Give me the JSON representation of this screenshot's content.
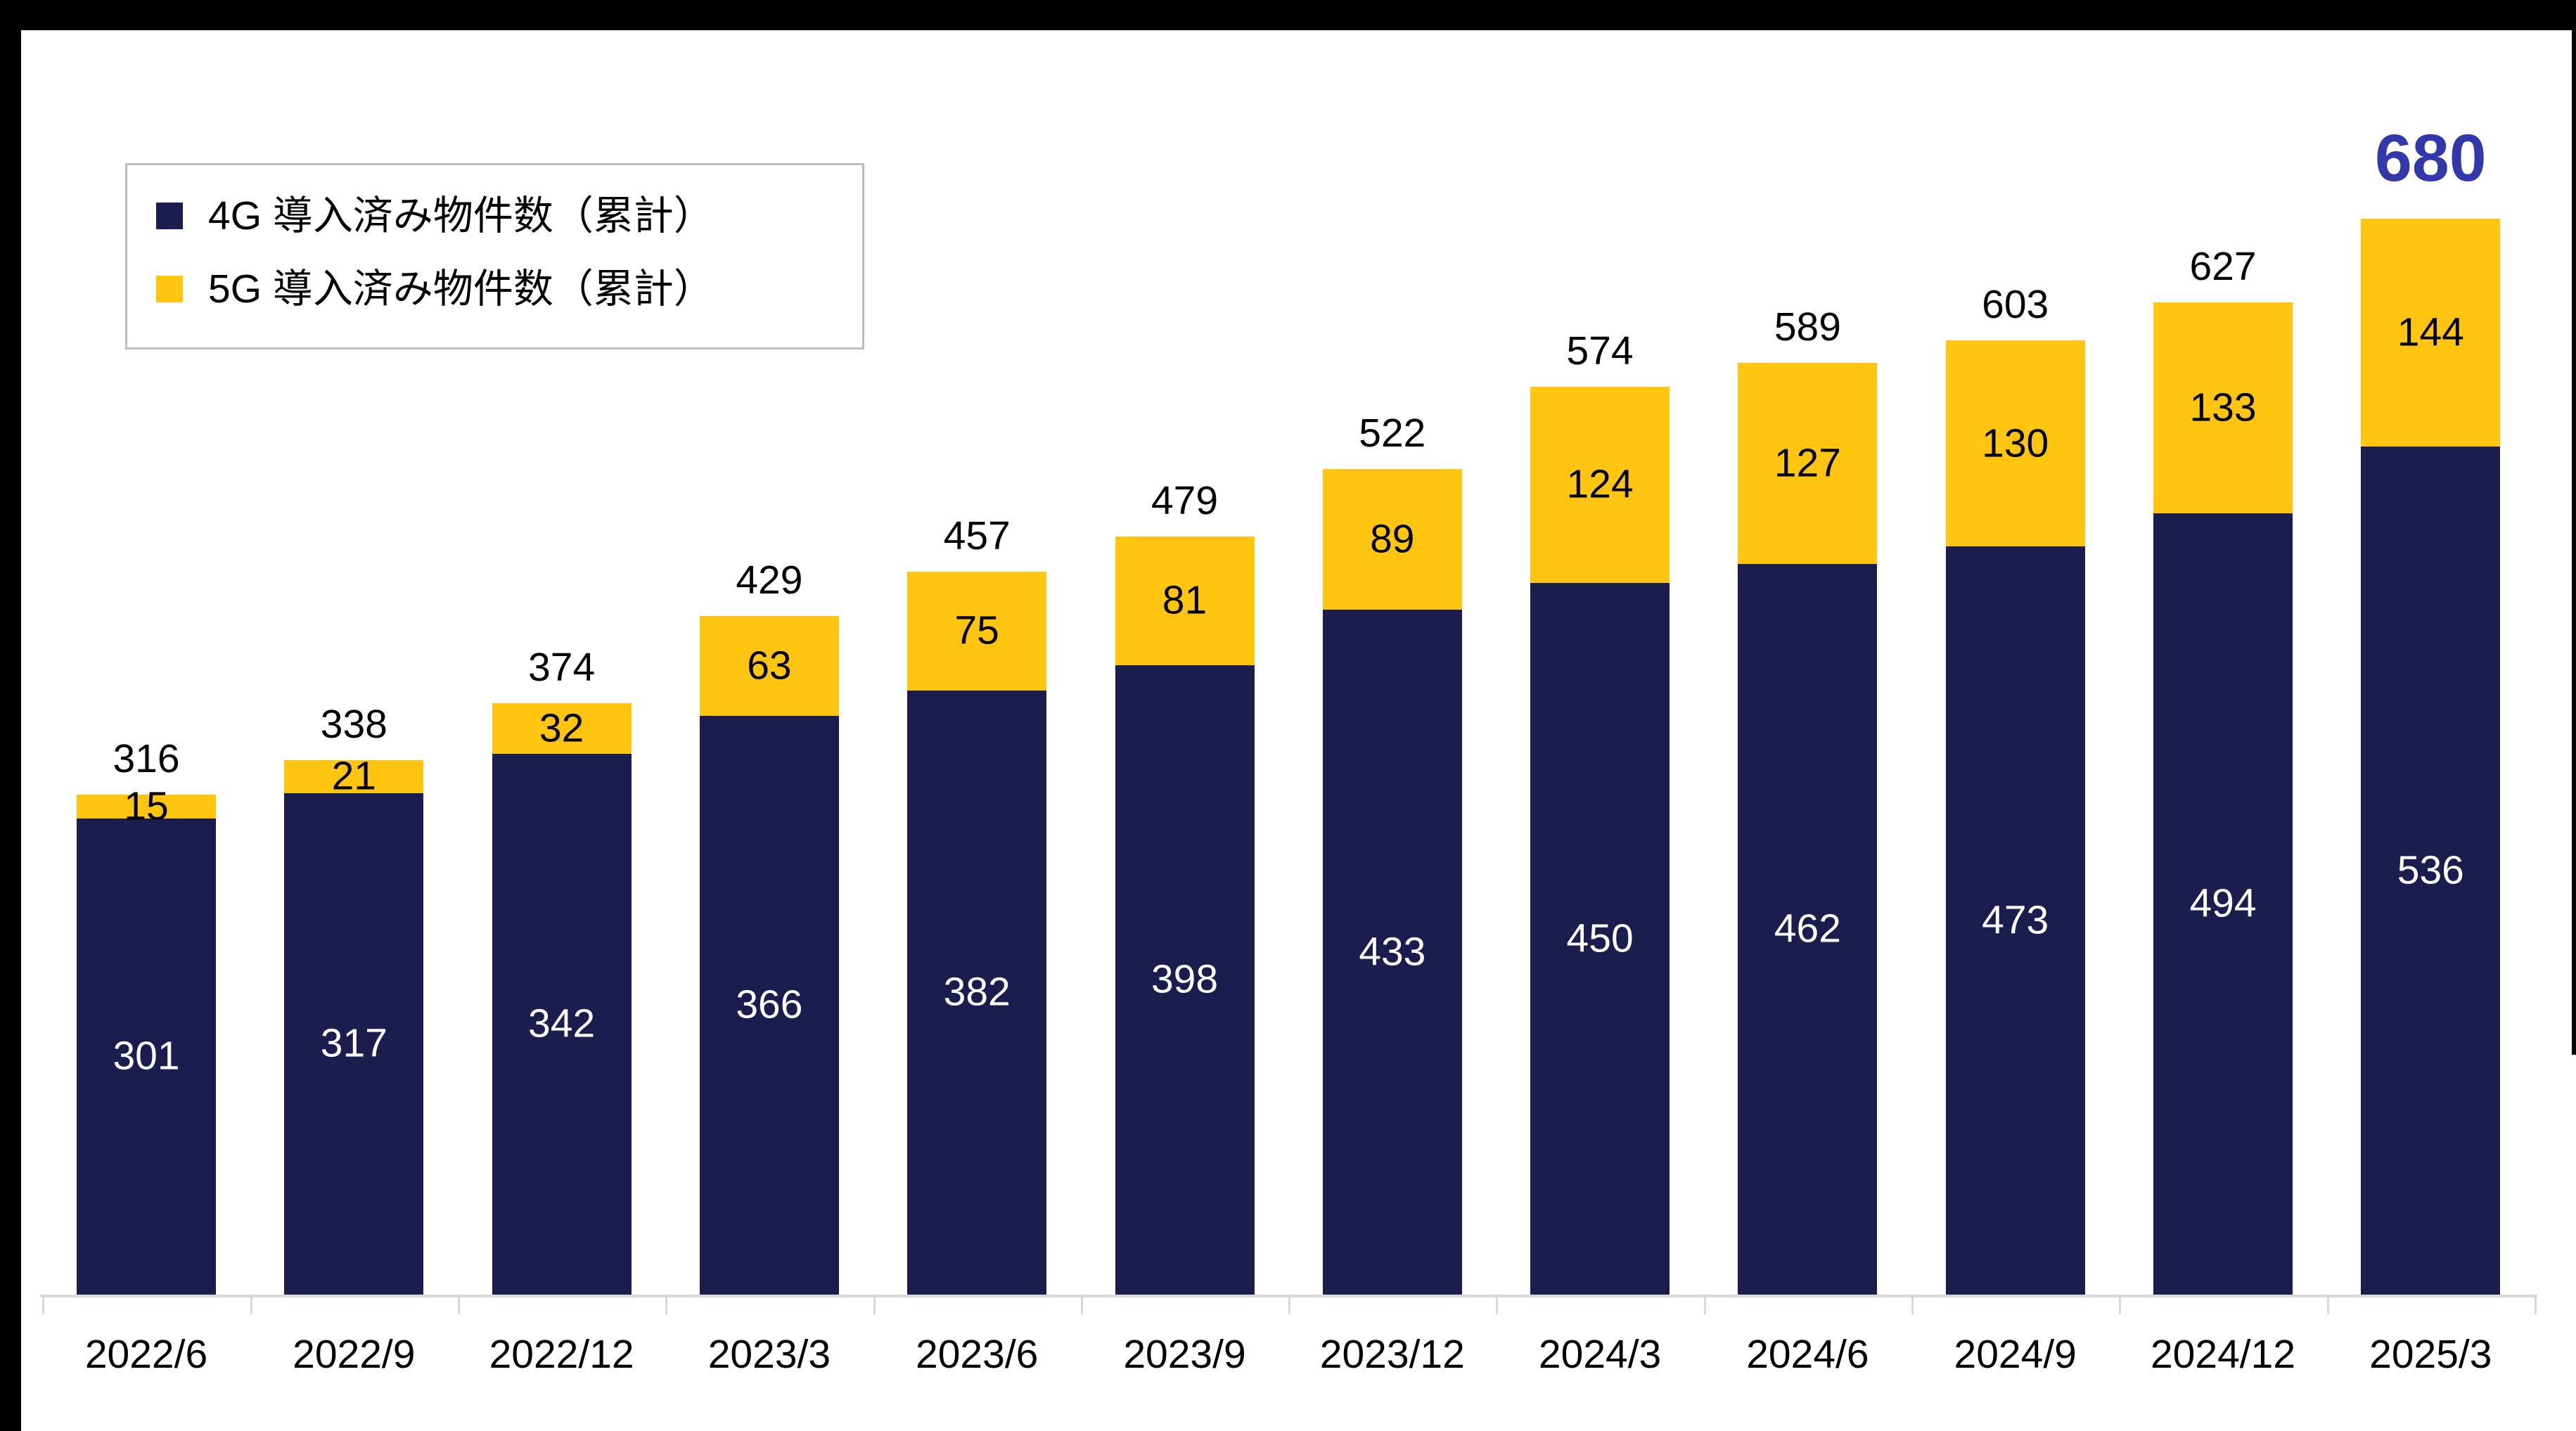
{
  "legend": {
    "items": [
      {
        "label": "4G 導入済み物件数（累計）",
        "color": "#1B1D4F"
      },
      {
        "label": "5G 導入済み物件数（累計）",
        "color": "#FFC510"
      }
    ]
  },
  "chart_data": {
    "type": "bar",
    "stacked": true,
    "title": "",
    "xlabel": "",
    "ylabel": "",
    "grid": false,
    "legend_position": "top-left",
    "categories": [
      "2022/6",
      "2022/9",
      "2022/12",
      "2023/3",
      "2023/6",
      "2023/9",
      "2023/12",
      "2024/3",
      "2024/6",
      "2024/9",
      "2024/12",
      "2025/3"
    ],
    "series": [
      {
        "name": "4G 導入済み物件数（累計）",
        "color": "#1B1D4F",
        "label_color": "#FFFFFF",
        "values": [
          301,
          317,
          342,
          366,
          382,
          398,
          433,
          450,
          462,
          473,
          494,
          536
        ]
      },
      {
        "name": "5G 導入済み物件数（累計）",
        "color": "#FFC510",
        "label_color": "#000000",
        "values": [
          15,
          21,
          32,
          63,
          75,
          81,
          89,
          124,
          127,
          130,
          133,
          144
        ]
      }
    ],
    "totals": [
      316,
      338,
      374,
      429,
      457,
      479,
      522,
      574,
      589,
      603,
      627,
      680
    ],
    "highlight_last_total": true,
    "highlight_color": "#3238A9",
    "ylim": [
      0,
      680
    ],
    "axis_color": "#D9D9D9"
  }
}
